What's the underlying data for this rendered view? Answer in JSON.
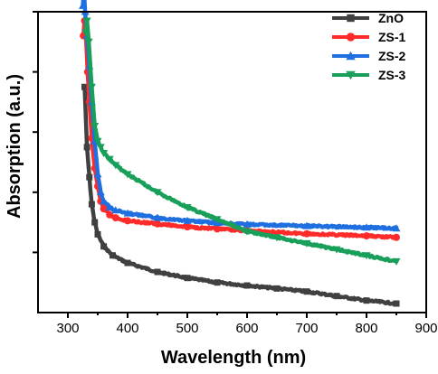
{
  "chart_data": {
    "type": "line",
    "title": "",
    "xlabel": "Wavelength (nm)",
    "ylabel": "Absorption (a.u.)",
    "xlim": [
      250,
      900
    ],
    "ylim": [
      0,
      1
    ],
    "xticks": [
      "300",
      "400",
      "500",
      "600",
      "700",
      "800",
      "900"
    ],
    "y_tick_labels_shown": false,
    "legend_position": "top-right",
    "series": [
      {
        "name": "ZnO",
        "color": "#404040",
        "marker": "square",
        "x": [
          328,
          332,
          336,
          340,
          345,
          350,
          360,
          375,
          400,
          450,
          500,
          550,
          600,
          650,
          700,
          750,
          800,
          850
        ],
        "y": [
          0.75,
          0.55,
          0.45,
          0.36,
          0.3,
          0.26,
          0.22,
          0.19,
          0.165,
          0.135,
          0.115,
          0.1,
          0.09,
          0.08,
          0.07,
          0.055,
          0.04,
          0.03
        ]
      },
      {
        "name": "ZS-1",
        "color": "#ff2a2a",
        "marker": "circle",
        "x": [
          326,
          328,
          330,
          333,
          336,
          340,
          345,
          350,
          355,
          360,
          370,
          380,
          400,
          450,
          500,
          550,
          600,
          700,
          800,
          850
        ],
        "y": [
          0.92,
          0.97,
          0.93,
          0.8,
          0.7,
          0.58,
          0.48,
          0.42,
          0.37,
          0.345,
          0.325,
          0.315,
          0.305,
          0.295,
          0.285,
          0.278,
          0.272,
          0.262,
          0.255,
          0.25
        ]
      },
      {
        "name": "ZS-2",
        "color": "#1f6fe0",
        "marker": "triangle-up",
        "x": [
          325,
          327,
          329,
          332,
          336,
          340,
          345,
          350,
          355,
          360,
          370,
          380,
          400,
          450,
          500,
          550,
          600,
          700,
          800,
          850
        ],
        "y": [
          1.02,
          1.07,
          1.0,
          0.92,
          0.82,
          0.7,
          0.57,
          0.46,
          0.4,
          0.37,
          0.35,
          0.34,
          0.33,
          0.315,
          0.305,
          0.298,
          0.293,
          0.288,
          0.283,
          0.28
        ]
      },
      {
        "name": "ZS-3",
        "color": "#18a05a",
        "marker": "triangle-down",
        "x": [
          330,
          332,
          335,
          340,
          345,
          350,
          355,
          360,
          370,
          380,
          400,
          450,
          500,
          550,
          600,
          650,
          700,
          750,
          800,
          850
        ],
        "y": [
          0.93,
          0.97,
          0.9,
          0.75,
          0.62,
          0.57,
          0.55,
          0.53,
          0.51,
          0.49,
          0.46,
          0.4,
          0.35,
          0.31,
          0.27,
          0.25,
          0.23,
          0.21,
          0.19,
          0.17
        ]
      }
    ]
  }
}
